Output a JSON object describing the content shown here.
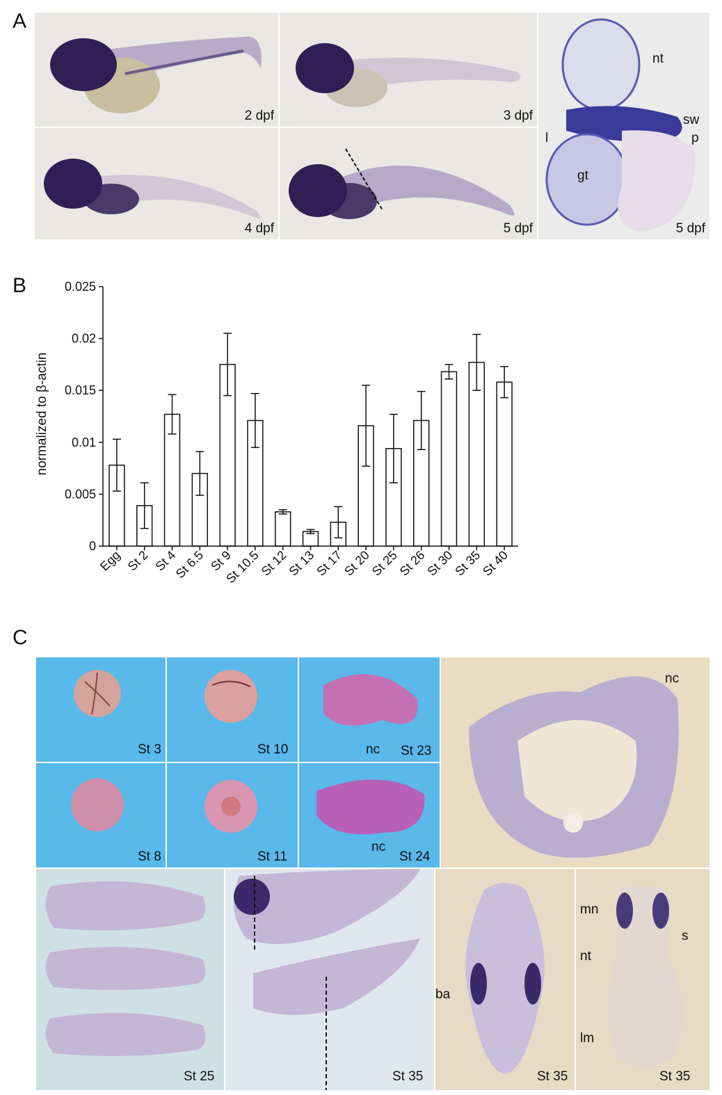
{
  "panel_labels": {
    "a": "A",
    "b": "B",
    "c": "C"
  },
  "panel_a": {
    "stages": [
      "2 dpf",
      "3 dpf",
      "4 dpf",
      "5 dpf",
      "5 dpf"
    ],
    "annotations": {
      "nt": "nt",
      "sw": "sw",
      "l": "l",
      "p": "p",
      "gt": "gt"
    }
  },
  "panel_c": {
    "stages": [
      "St 3",
      "St 10",
      "St 23",
      "St 8",
      "St 11",
      "St 24",
      "St 25",
      "St 35",
      "St 35",
      "St 35"
    ],
    "annotations": {
      "nc": "nc",
      "ba": "ba",
      "mn": "mn",
      "nt": "nt",
      "s": "s",
      "lm": "lm"
    }
  },
  "chart_data": {
    "type": "bar",
    "ylabel": "normalized to β-actin",
    "ylim": [
      0,
      0.025
    ],
    "yticks": [
      0,
      0.005,
      0.01,
      0.015,
      0.02,
      0.025
    ],
    "ytick_labels": [
      "0",
      "0.005",
      "0.01",
      "0.015",
      "0.02",
      "0.025"
    ],
    "categories": [
      "Egg",
      "St 2",
      "St 4",
      "St 6.5",
      "St 9",
      "St 10.5",
      "St 12",
      "St 13",
      "St 17",
      "St 20",
      "St 25",
      "St 26",
      "St 30",
      "St 35",
      "St 40"
    ],
    "values": [
      0.0078,
      0.0039,
      0.0127,
      0.007,
      0.0175,
      0.0121,
      0.0033,
      0.0014,
      0.0023,
      0.0116,
      0.0094,
      0.0121,
      0.0168,
      0.0177,
      0.0158
    ],
    "errors": [
      0.0025,
      0.0022,
      0.0019,
      0.0021,
      0.003,
      0.0026,
      0.0002,
      0.0002,
      0.0015,
      0.0039,
      0.0033,
      0.0028,
      0.0007,
      0.0027,
      0.0015
    ],
    "grid": false,
    "legend": "none"
  },
  "colors": {
    "background_a": "#e9e8e4",
    "stain": "#2e1f54",
    "background_c_top": "#58b9ea",
    "background_c_bottom": "#cfe0e5",
    "background_c_section": "#e8dcc2",
    "embryo_pink": "#dd9a9a"
  }
}
